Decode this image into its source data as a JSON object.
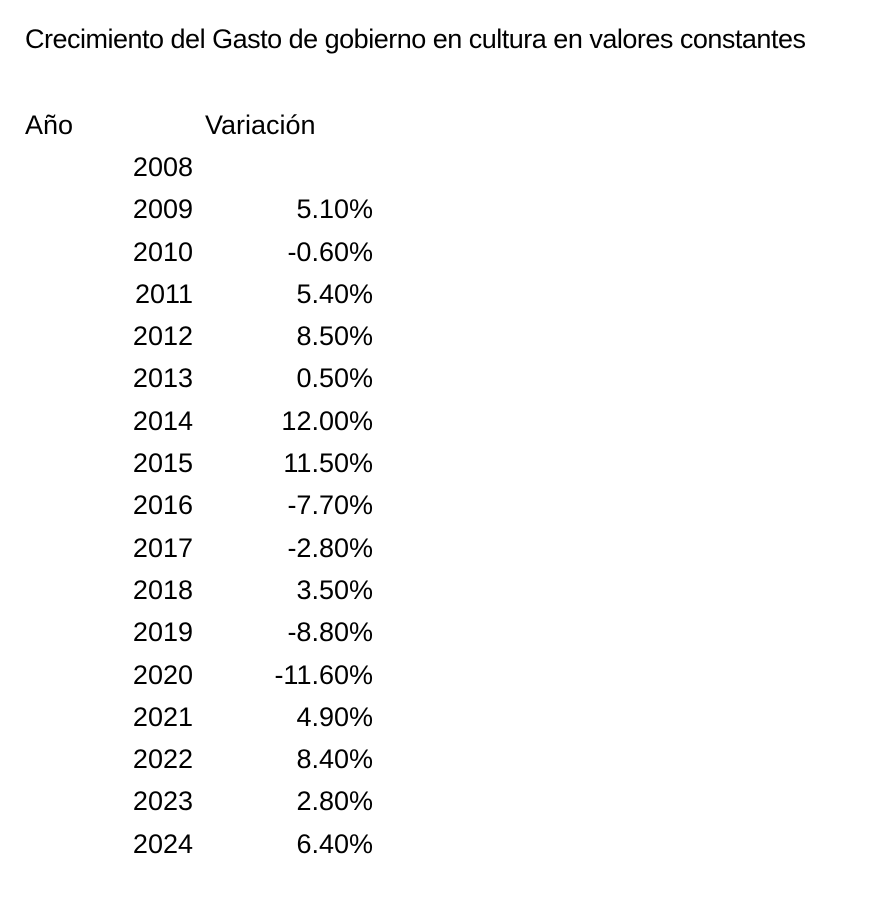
{
  "title": "Crecimiento del Gasto de gobierno en cultura en valores constantes",
  "colors": {
    "text": "#000000",
    "background": "#ffffff"
  },
  "table": {
    "headers": {
      "year": "Año",
      "variation": "Variación"
    },
    "rows": [
      {
        "year": "2008",
        "variation": ""
      },
      {
        "year": "2009",
        "variation": "5.10%"
      },
      {
        "year": "2010",
        "variation": "-0.60%"
      },
      {
        "year": "2011",
        "variation": "5.40%"
      },
      {
        "year": "2012",
        "variation": "8.50%"
      },
      {
        "year": "2013",
        "variation": "0.50%"
      },
      {
        "year": "2014",
        "variation": "12.00%"
      },
      {
        "year": "2015",
        "variation": "11.50%"
      },
      {
        "year": "2016",
        "variation": "-7.70%"
      },
      {
        "year": "2017",
        "variation": "-2.80%"
      },
      {
        "year": "2018",
        "variation": "3.50%"
      },
      {
        "year": "2019",
        "variation": "-8.80%"
      },
      {
        "year": "2020",
        "variation": "-11.60%"
      },
      {
        "year": "2021",
        "variation": "4.90%"
      },
      {
        "year": "2022",
        "variation": "8.40%"
      },
      {
        "year": "2023",
        "variation": "2.80%"
      },
      {
        "year": "2024",
        "variation": "6.40%"
      }
    ]
  }
}
